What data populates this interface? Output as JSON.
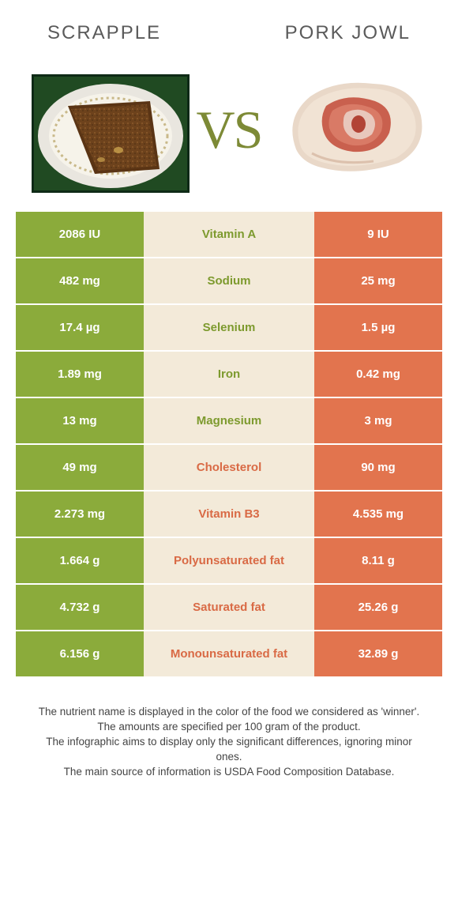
{
  "header": {
    "left_title": "SCRAPPLE",
    "right_title": "PORK JOWL",
    "vs_text": "VS"
  },
  "colors": {
    "left_bar": "#8bab3b",
    "right_bar": "#e2744e",
    "mid_bg": "#f3ead9",
    "left_text": "#7d9a2e",
    "right_text": "#d96a45",
    "title_text": "#5a5a5a",
    "vs_text": "#7d8a36"
  },
  "rows": [
    {
      "left": "2086 IU",
      "nutrient": "Vitamin A",
      "right": "9 IU",
      "winner": "left"
    },
    {
      "left": "482 mg",
      "nutrient": "Sodium",
      "right": "25 mg",
      "winner": "left"
    },
    {
      "left": "17.4 µg",
      "nutrient": "Selenium",
      "right": "1.5 µg",
      "winner": "left"
    },
    {
      "left": "1.89 mg",
      "nutrient": "Iron",
      "right": "0.42 mg",
      "winner": "left"
    },
    {
      "left": "13 mg",
      "nutrient": "Magnesium",
      "right": "3 mg",
      "winner": "left"
    },
    {
      "left": "49 mg",
      "nutrient": "Cholesterol",
      "right": "90 mg",
      "winner": "right"
    },
    {
      "left": "2.273 mg",
      "nutrient": "Vitamin B3",
      "right": "4.535 mg",
      "winner": "right"
    },
    {
      "left": "1.664 g",
      "nutrient": "Polyunsaturated fat",
      "right": "8.11 g",
      "winner": "right"
    },
    {
      "left": "4.732 g",
      "nutrient": "Saturated fat",
      "right": "25.26 g",
      "winner": "right"
    },
    {
      "left": "6.156 g",
      "nutrient": "Monounsaturated fat",
      "right": "32.89 g",
      "winner": "right"
    }
  ],
  "footnotes": [
    "The nutrient name is displayed in the color of the food we considered as 'winner'.",
    "The amounts are specified per 100 gram of the product.",
    "The infographic aims to display only the significant differences, ignoring minor ones.",
    "The main source of information is USDA Food Composition Database."
  ]
}
